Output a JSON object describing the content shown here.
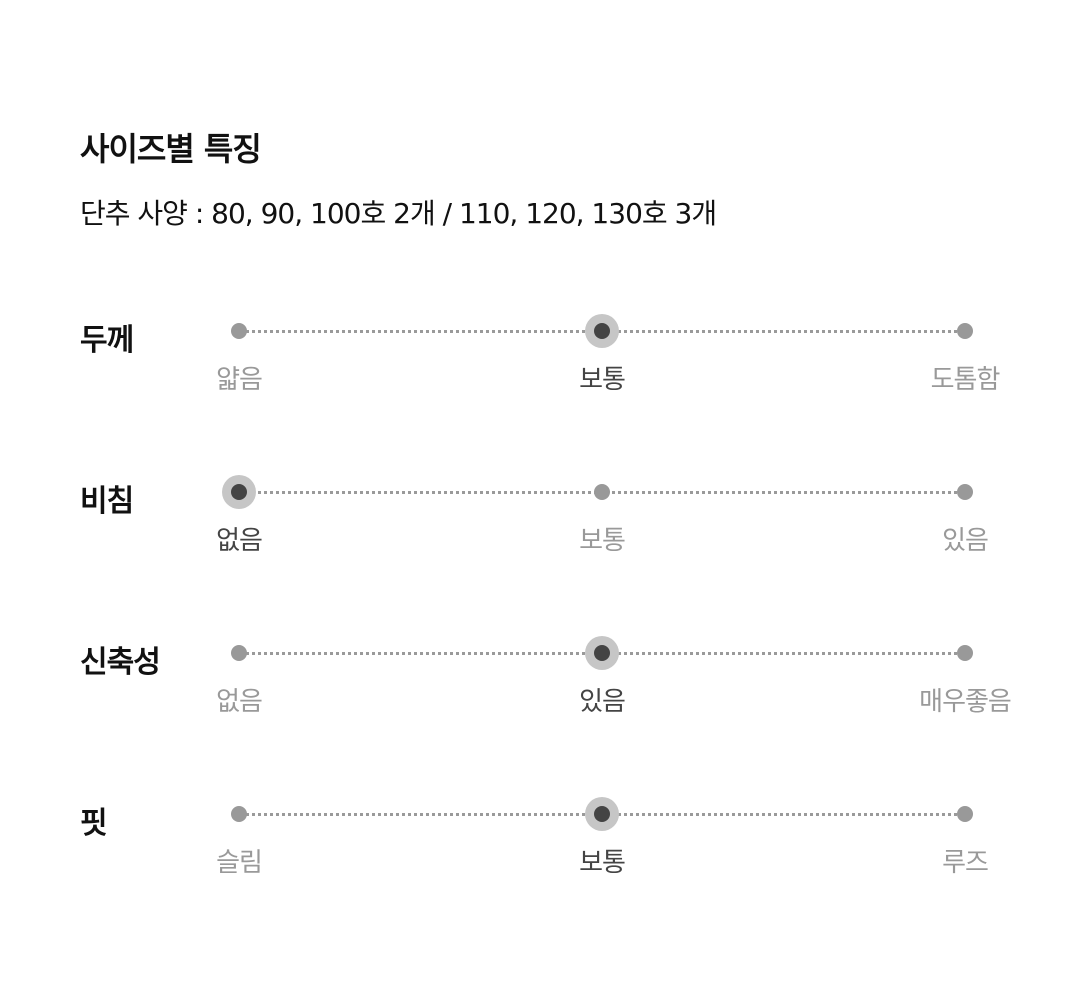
{
  "title": "사이즈별 특징",
  "subtitle": "단추 사양 : 80, 90, 100호 2개 / 110, 120, 130호 3개",
  "rows": [
    {
      "label": "두께",
      "options": [
        "얇음",
        "보통",
        "도톰함"
      ],
      "selected": 1
    },
    {
      "label": "비침",
      "options": [
        "없음",
        "보통",
        "있음"
      ],
      "selected": 0
    },
    {
      "label": "신축성",
      "options": [
        "없음",
        "있음",
        "매우좋음"
      ],
      "selected": 1
    },
    {
      "label": "핏",
      "options": [
        "슬림",
        "보통",
        "루즈"
      ],
      "selected": 1
    }
  ],
  "colors": {
    "selected_dot": "#444444",
    "selected_halo": "#c6c6c6",
    "unselected": "#999999"
  }
}
